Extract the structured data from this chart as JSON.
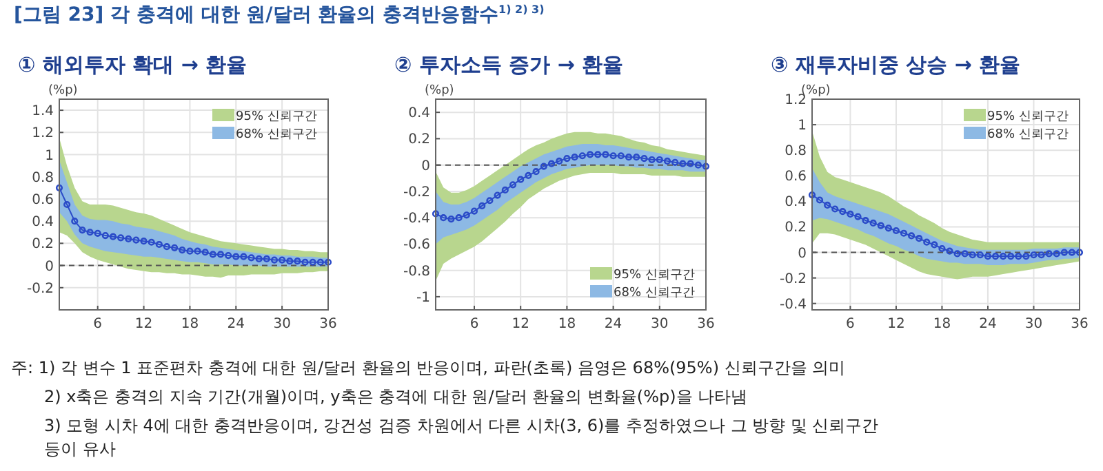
{
  "chart_data": [
    {
      "type": "other",
      "title": "[그림 23] 각 충격에 대한 원/달러 환율의 충격반응함수$^{1) 2) 3)}$",
      "annotations": [
        "주: 1) 각 변수 1 표준편차 충격에 대한 원/달러 환율의 반응이며, 파란(초록) 음영은 68%(95%) 신뢰구간을 의미",
        "2) x축은 충격의 지속 기간(개월)이며, y축은 충격에 대한 원/달러 환율의 변화율(%p)을 나타냄",
        "3) 모형 시차 4에 대한 충격반응이며, 강건성 검증 차원에서 다른 시차(3, 6)를 추정하였으나 그 방향 및 신뢰구간 등이 유사"
      ]
    },
    {
      "type": "line",
      "title": "① 해외투자 확대 → 환율",
      "ylabel": "(%p)",
      "x": [
        1,
        2,
        3,
        4,
        5,
        6,
        7,
        8,
        9,
        10,
        11,
        12,
        13,
        14,
        15,
        16,
        17,
        18,
        19,
        20,
        21,
        22,
        23,
        24,
        25,
        26,
        27,
        28,
        29,
        30,
        31,
        32,
        33,
        34,
        35,
        36
      ],
      "xlim": [
        1,
        36
      ],
      "xticks": [
        6,
        12,
        18,
        24,
        30,
        36
      ],
      "ylim": [
        -0.4,
        1.5
      ],
      "yticks": [
        -0.2,
        0,
        0.2,
        0.4,
        0.6,
        0.8,
        1,
        1.2,
        1.4
      ],
      "grid": true,
      "legend": "top right",
      "marker": "circle",
      "ref_lines": [
        {
          "axis": "y",
          "value": 0,
          "color": "#555555",
          "line_style": "dashed"
        }
      ],
      "series": [
        {
          "name": "95% 신뢰구간",
          "type": "line",
          "color": "#b8d68e",
          "values": [
            null,
            null,
            null,
            null,
            null,
            null,
            null,
            null,
            null,
            null,
            null,
            null,
            null,
            null,
            null,
            null,
            null,
            null,
            null,
            null,
            null,
            null,
            null,
            null,
            null,
            null,
            null,
            null,
            null,
            null,
            null,
            null,
            null,
            null,
            null,
            null
          ],
          "upper": [
            1.15,
            0.9,
            0.7,
            0.58,
            0.55,
            0.55,
            0.55,
            0.54,
            0.52,
            0.5,
            0.48,
            0.47,
            0.45,
            0.42,
            0.39,
            0.36,
            0.33,
            0.3,
            0.28,
            0.26,
            0.24,
            0.22,
            0.21,
            0.2,
            0.19,
            0.18,
            0.17,
            0.16,
            0.15,
            0.15,
            0.14,
            0.14,
            0.13,
            0.13,
            0.12,
            0.12
          ],
          "lower": [
            0.3,
            0.27,
            0.2,
            0.12,
            0.08,
            0.05,
            0.03,
            0.01,
            -0.01,
            -0.03,
            -0.04,
            -0.05,
            -0.06,
            -0.06,
            -0.07,
            -0.07,
            -0.08,
            -0.08,
            -0.09,
            -0.1,
            -0.1,
            -0.11,
            -0.09,
            -0.09,
            -0.09,
            -0.08,
            -0.08,
            -0.08,
            -0.08,
            -0.07,
            -0.07,
            -0.07,
            -0.06,
            -0.06,
            -0.05,
            -0.05
          ]
        },
        {
          "name": "68% 신뢰구간",
          "type": "line",
          "color": "#8db9e4",
          "values": [
            null,
            null,
            null,
            null,
            null,
            null,
            null,
            null,
            null,
            null,
            null,
            null,
            null,
            null,
            null,
            null,
            null,
            null,
            null,
            null,
            null,
            null,
            null,
            null,
            null,
            null,
            null,
            null,
            null,
            null,
            null,
            null,
            null,
            null,
            null,
            null
          ],
          "upper": [
            0.95,
            0.75,
            0.55,
            0.45,
            0.42,
            0.41,
            0.41,
            0.4,
            0.38,
            0.37,
            0.35,
            0.34,
            0.33,
            0.31,
            0.29,
            0.27,
            0.24,
            0.22,
            0.2,
            0.19,
            0.17,
            0.16,
            0.15,
            0.14,
            0.13,
            0.12,
            0.11,
            0.1,
            0.1,
            0.09,
            0.09,
            0.08,
            0.08,
            0.08,
            0.07,
            0.07
          ],
          "lower": [
            0.48,
            0.4,
            0.28,
            0.2,
            0.17,
            0.15,
            0.13,
            0.12,
            0.11,
            0.1,
            0.09,
            0.08,
            0.08,
            0.07,
            0.06,
            0.05,
            0.04,
            0.03,
            0.03,
            0.02,
            0.01,
            0.01,
            0.01,
            0,
            0,
            0,
            0,
            -0.01,
            -0.01,
            -0.01,
            -0.01,
            -0.01,
            -0.01,
            -0.01,
            -0.01,
            -0.01
          ]
        },
        {
          "type": "line",
          "color": "#2b4bc8",
          "values": [
            0.7,
            0.55,
            0.4,
            0.32,
            0.3,
            0.29,
            0.27,
            0.26,
            0.25,
            0.24,
            0.23,
            0.22,
            0.21,
            0.19,
            0.17,
            0.16,
            0.14,
            0.13,
            0.13,
            0.12,
            0.1,
            0.1,
            0.09,
            0.08,
            0.08,
            0.07,
            0.06,
            0.06,
            0.05,
            0.05,
            0.04,
            0.04,
            0.03,
            0.03,
            0.03,
            0.03
          ]
        }
      ]
    },
    {
      "type": "line",
      "title": "② 투자소득 증가 → 환율",
      "ylabel": "(%p)",
      "x": [
        1,
        2,
        3,
        4,
        5,
        6,
        7,
        8,
        9,
        10,
        11,
        12,
        13,
        14,
        15,
        16,
        17,
        18,
        19,
        20,
        21,
        22,
        23,
        24,
        25,
        26,
        27,
        28,
        29,
        30,
        31,
        32,
        33,
        34,
        35,
        36
      ],
      "xlim": [
        1,
        36
      ],
      "xticks": [
        6,
        12,
        18,
        24,
        30,
        36
      ],
      "ylim": [
        -1.1,
        0.5
      ],
      "yticks": [
        -1,
        -0.8,
        -0.6,
        -0.4,
        -0.2,
        0,
        0.2,
        0.4
      ],
      "grid": true,
      "legend": "bottom right",
      "marker": "circle",
      "ref_lines": [
        {
          "axis": "y",
          "value": 0,
          "color": "#555555",
          "line_style": "dashed"
        }
      ],
      "series": [
        {
          "name": "95% 신뢰구간",
          "type": "line",
          "color": "#b8d68e",
          "values": [
            null,
            null,
            null,
            null,
            null,
            null,
            null,
            null,
            null,
            null,
            null,
            null,
            null,
            null,
            null,
            null,
            null,
            null,
            null,
            null,
            null,
            null,
            null,
            null,
            null,
            null,
            null,
            null,
            null,
            null,
            null,
            null,
            null,
            null,
            null,
            null
          ],
          "upper": [
            -0.05,
            -0.17,
            -0.21,
            -0.21,
            -0.19,
            -0.16,
            -0.12,
            -0.08,
            -0.04,
            0,
            0.04,
            0.08,
            0.12,
            0.15,
            0.17,
            0.2,
            0.22,
            0.24,
            0.25,
            0.25,
            0.25,
            0.24,
            0.24,
            0.23,
            0.22,
            0.2,
            0.18,
            0.17,
            0.15,
            0.14,
            0.12,
            0.11,
            0.1,
            0.09,
            0.08,
            0.07
          ],
          "lower": [
            -0.88,
            -0.75,
            -0.71,
            -0.68,
            -0.65,
            -0.62,
            -0.58,
            -0.53,
            -0.48,
            -0.43,
            -0.37,
            -0.32,
            -0.26,
            -0.22,
            -0.18,
            -0.15,
            -0.12,
            -0.1,
            -0.08,
            -0.07,
            -0.06,
            -0.06,
            -0.06,
            -0.06,
            -0.07,
            -0.07,
            -0.07,
            -0.07,
            -0.08,
            -0.08,
            -0.08,
            -0.08,
            -0.09,
            -0.09,
            -0.09,
            -0.09
          ]
        },
        {
          "name": "68% 신뢰구간",
          "type": "line",
          "color": "#8db9e4",
          "values": [
            null,
            null,
            null,
            null,
            null,
            null,
            null,
            null,
            null,
            null,
            null,
            null,
            null,
            null,
            null,
            null,
            null,
            null,
            null,
            null,
            null,
            null,
            null,
            null,
            null,
            null,
            null,
            null,
            null,
            null,
            null,
            null,
            null,
            null,
            null,
            null
          ],
          "upper": [
            -0.2,
            -0.28,
            -0.3,
            -0.3,
            -0.28,
            -0.25,
            -0.21,
            -0.17,
            -0.13,
            -0.09,
            -0.05,
            -0.01,
            0.02,
            0.05,
            0.08,
            0.1,
            0.12,
            0.14,
            0.15,
            0.16,
            0.16,
            0.16,
            0.15,
            0.15,
            0.14,
            0.13,
            0.12,
            0.11,
            0.1,
            0.09,
            0.08,
            0.07,
            0.06,
            0.05,
            0.04,
            0.04
          ],
          "lower": [
            -0.6,
            -0.55,
            -0.53,
            -0.51,
            -0.49,
            -0.46,
            -0.42,
            -0.38,
            -0.34,
            -0.29,
            -0.25,
            -0.21,
            -0.17,
            -0.13,
            -0.1,
            -0.07,
            -0.05,
            -0.03,
            -0.02,
            -0.01,
            0,
            0,
            0,
            0,
            -0.01,
            -0.01,
            -0.02,
            -0.02,
            -0.03,
            -0.03,
            -0.04,
            -0.04,
            -0.04,
            -0.05,
            -0.05,
            -0.05
          ]
        },
        {
          "type": "line",
          "color": "#2b4bc8",
          "values": [
            -0.37,
            -0.4,
            -0.41,
            -0.4,
            -0.38,
            -0.35,
            -0.31,
            -0.27,
            -0.23,
            -0.19,
            -0.15,
            -0.11,
            -0.08,
            -0.05,
            -0.01,
            0.01,
            0.03,
            0.05,
            0.06,
            0.07,
            0.08,
            0.08,
            0.08,
            0.07,
            0.07,
            0.06,
            0.06,
            0.05,
            0.04,
            0.04,
            0.03,
            0.02,
            0.01,
            0.01,
            0,
            -0.01
          ]
        }
      ]
    },
    {
      "type": "line",
      "title": "③ 재투자비중 상승 → 환율",
      "ylabel": "(%p)",
      "x": [
        1,
        2,
        3,
        4,
        5,
        6,
        7,
        8,
        9,
        10,
        11,
        12,
        13,
        14,
        15,
        16,
        17,
        18,
        19,
        20,
        21,
        22,
        23,
        24,
        25,
        26,
        27,
        28,
        29,
        30,
        31,
        32,
        33,
        34,
        35,
        36
      ],
      "xlim": [
        1,
        36
      ],
      "xticks": [
        6,
        12,
        18,
        24,
        30,
        36
      ],
      "ylim": [
        -0.45,
        1.2
      ],
      "yticks": [
        -0.4,
        -0.2,
        0,
        0.2,
        0.4,
        0.6,
        0.8,
        1,
        1.2
      ],
      "grid": true,
      "legend": "top right",
      "marker": "circle",
      "ref_lines": [
        {
          "axis": "y",
          "value": 0,
          "color": "#555555",
          "line_style": "dashed"
        }
      ],
      "series": [
        {
          "name": "95% 신뢰구간",
          "type": "line",
          "color": "#b8d68e",
          "values": [
            null,
            null,
            null,
            null,
            null,
            null,
            null,
            null,
            null,
            null,
            null,
            null,
            null,
            null,
            null,
            null,
            null,
            null,
            null,
            null,
            null,
            null,
            null,
            null,
            null,
            null,
            null,
            null,
            null,
            null,
            null,
            null,
            null,
            null,
            null,
            null
          ],
          "upper": [
            0.95,
            0.75,
            0.63,
            0.59,
            0.57,
            0.55,
            0.53,
            0.51,
            0.49,
            0.47,
            0.44,
            0.4,
            0.36,
            0.33,
            0.29,
            0.26,
            0.23,
            0.19,
            0.16,
            0.14,
            0.12,
            0.1,
            0.09,
            0.08,
            0.08,
            0.08,
            0.08,
            0.08,
            0.08,
            0.08,
            0.08,
            0.08,
            0.08,
            0.08,
            0.08,
            0.08
          ],
          "lower": [
            0.07,
            0.15,
            0.15,
            0.14,
            0.12,
            0.1,
            0.08,
            0.06,
            0.03,
            0,
            -0.03,
            -0.06,
            -0.09,
            -0.12,
            -0.15,
            -0.17,
            -0.18,
            -0.19,
            -0.2,
            -0.21,
            -0.2,
            -0.19,
            -0.19,
            -0.19,
            -0.18,
            -0.17,
            -0.16,
            -0.15,
            -0.14,
            -0.13,
            -0.12,
            -0.11,
            -0.1,
            -0.09,
            -0.08,
            -0.07
          ]
        },
        {
          "name": "68% 신뢰구간",
          "type": "line",
          "color": "#8db9e4",
          "values": [
            null,
            null,
            null,
            null,
            null,
            null,
            null,
            null,
            null,
            null,
            null,
            null,
            null,
            null,
            null,
            null,
            null,
            null,
            null,
            null,
            null,
            null,
            null,
            null,
            null,
            null,
            null,
            null,
            null,
            null,
            null,
            null,
            null,
            null,
            null,
            null
          ],
          "upper": [
            0.66,
            0.55,
            0.47,
            0.44,
            0.42,
            0.4,
            0.38,
            0.36,
            0.34,
            0.32,
            0.3,
            0.27,
            0.24,
            0.21,
            0.18,
            0.15,
            0.12,
            0.09,
            0.07,
            0.05,
            0.04,
            0.03,
            0.02,
            0.02,
            0.02,
            0.02,
            0.02,
            0.02,
            0.02,
            0.03,
            0.03,
            0.03,
            0.03,
            0.04,
            0.04,
            0.04
          ],
          "lower": [
            0.25,
            0.27,
            0.26,
            0.24,
            0.22,
            0.2,
            0.18,
            0.15,
            0.13,
            0.1,
            0.07,
            0.05,
            0.02,
            0,
            -0.03,
            -0.05,
            -0.06,
            -0.07,
            -0.08,
            -0.08,
            -0.09,
            -0.09,
            -0.09,
            -0.1,
            -0.1,
            -0.1,
            -0.09,
            -0.09,
            -0.09,
            -0.08,
            -0.07,
            -0.06,
            -0.06,
            -0.05,
            -0.05,
            -0.04
          ]
        },
        {
          "type": "line",
          "color": "#2b4bc8",
          "values": [
            0.45,
            0.41,
            0.37,
            0.34,
            0.32,
            0.3,
            0.28,
            0.25,
            0.23,
            0.21,
            0.19,
            0.17,
            0.15,
            0.13,
            0.11,
            0.08,
            0.06,
            0.03,
            0.01,
            -0.01,
            -0.01,
            -0.02,
            -0.02,
            -0.03,
            -0.03,
            -0.03,
            -0.03,
            -0.03,
            -0.03,
            -0.02,
            -0.02,
            -0.01,
            -0.01,
            0,
            0,
            0
          ]
        }
      ]
    }
  ]
}
